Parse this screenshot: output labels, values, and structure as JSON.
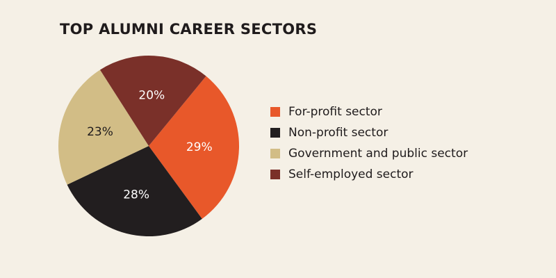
{
  "chart_data": {
    "type": "pie",
    "title": "TOP ALUMNI CAREER SECTORS",
    "slices": [
      {
        "label": "For-profit sector",
        "value": 29,
        "display": "29%",
        "color": "#e8582a",
        "label_color": "#ffffff"
      },
      {
        "label": "Non-profit sector",
        "value": 28,
        "display": "28%",
        "color": "#221e1f",
        "label_color": "#ffffff"
      },
      {
        "label": "Government and public sector",
        "value": 23,
        "display": "23%",
        "color": "#d2bd86",
        "label_color": "#1f1b1c"
      },
      {
        "label": "Self-employed sector",
        "value": 20,
        "display": "20%",
        "color": "#7a3029",
        "label_color": "#ffffff"
      }
    ],
    "legend_position": "right"
  }
}
